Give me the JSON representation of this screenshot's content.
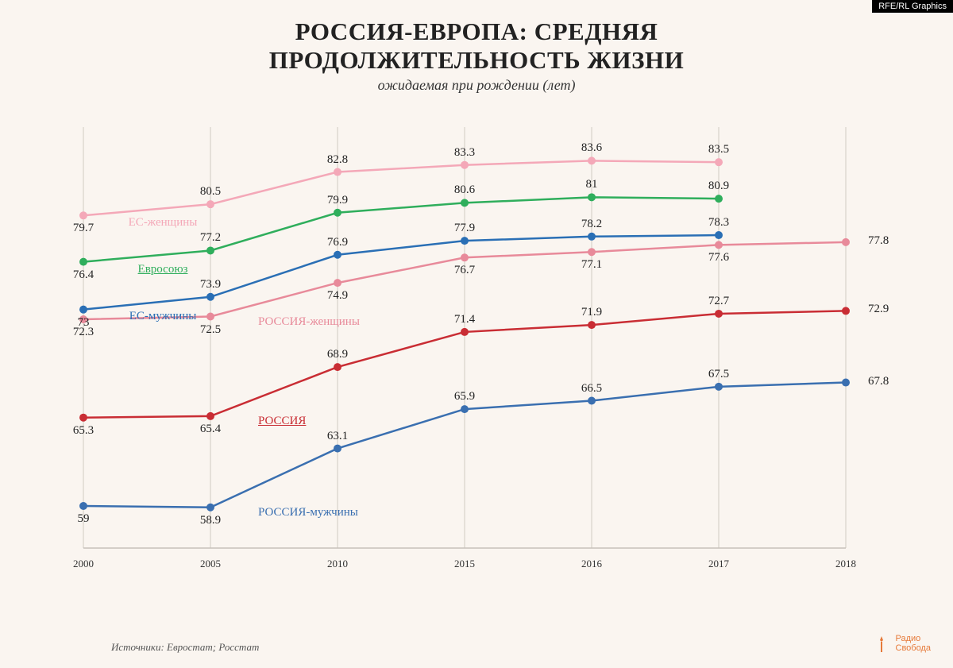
{
  "tag": "RFE/RL Graphics",
  "title_line1": "РОССИЯ-ЕВРОПА: СРЕДНЯЯ",
  "title_line2": "ПРОДОЛЖИТЕЛЬНОСТЬ ЖИЗНИ",
  "subtitle": "ожидаемая при рождении (лет)",
  "source": "Источники: Евростат; Росстат",
  "logo_line1": "Радио",
  "logo_line2": "Свобода",
  "chart": {
    "type": "line",
    "background_color": "#faf5f0",
    "grid_color": "#d0cac2",
    "axis_line_color": "#c8c2ba",
    "xlabels": [
      "2000",
      "2005",
      "2010",
      "2015",
      "2016",
      "2017",
      "2018"
    ],
    "ylim": [
      56,
      86
    ],
    "marker_radius": 5,
    "line_width": 2.5,
    "label_fontsize": 15,
    "xaxis_fontsize": 13,
    "series": [
      {
        "id": "eu_women",
        "label": "ЕС-женщины",
        "color": "#f4a8b8",
        "label_pos": "left-below",
        "values": [
          79.7,
          80.5,
          82.8,
          83.3,
          83.6,
          83.5,
          null
        ],
        "value_pos": [
          "below",
          "above",
          "above",
          "above",
          "above",
          "above",
          null
        ]
      },
      {
        "id": "eu",
        "label": "Евросоюз",
        "label_underline": true,
        "color": "#2fae5c",
        "label_pos": "left-below",
        "values": [
          76.4,
          77.2,
          79.9,
          80.6,
          81,
          80.9,
          null
        ],
        "value_pos": [
          "below",
          "above",
          "above",
          "above",
          "above",
          "above",
          null
        ]
      },
      {
        "id": "eu_men",
        "label": "ЕС-мужчины",
        "color": "#2a6fb5",
        "label_pos": "left-below",
        "values": [
          73,
          73.9,
          76.9,
          77.9,
          78.2,
          78.3,
          null
        ],
        "value_pos": [
          "below",
          "above",
          "above",
          "above",
          "above",
          "above",
          null
        ]
      },
      {
        "id": "ru_women",
        "label": "РОССИЯ-женщины",
        "color": "#e88a9a",
        "label_pos": "right",
        "values": [
          72.3,
          72.5,
          74.9,
          76.7,
          77.1,
          77.6,
          77.8
        ],
        "value_pos": [
          "below",
          "below",
          "below",
          "below",
          "below",
          "below",
          "right"
        ]
      },
      {
        "id": "ru",
        "label": "РОССИЯ",
        "label_underline": true,
        "color": "#c92d34",
        "label_pos": "right",
        "values": [
          65.3,
          65.4,
          68.9,
          71.4,
          71.9,
          72.7,
          72.9
        ],
        "value_pos": [
          "below",
          "below",
          "above",
          "above",
          "above",
          "above",
          "right"
        ]
      },
      {
        "id": "ru_men",
        "label": "РОССИЯ-мужчины",
        "color": "#3a6fb0",
        "label_pos": "right",
        "values": [
          59,
          58.9,
          63.1,
          65.9,
          66.5,
          67.5,
          67.8
        ],
        "value_pos": [
          "below",
          "below",
          "above",
          "above",
          "above",
          "above",
          "right"
        ]
      }
    ]
  }
}
